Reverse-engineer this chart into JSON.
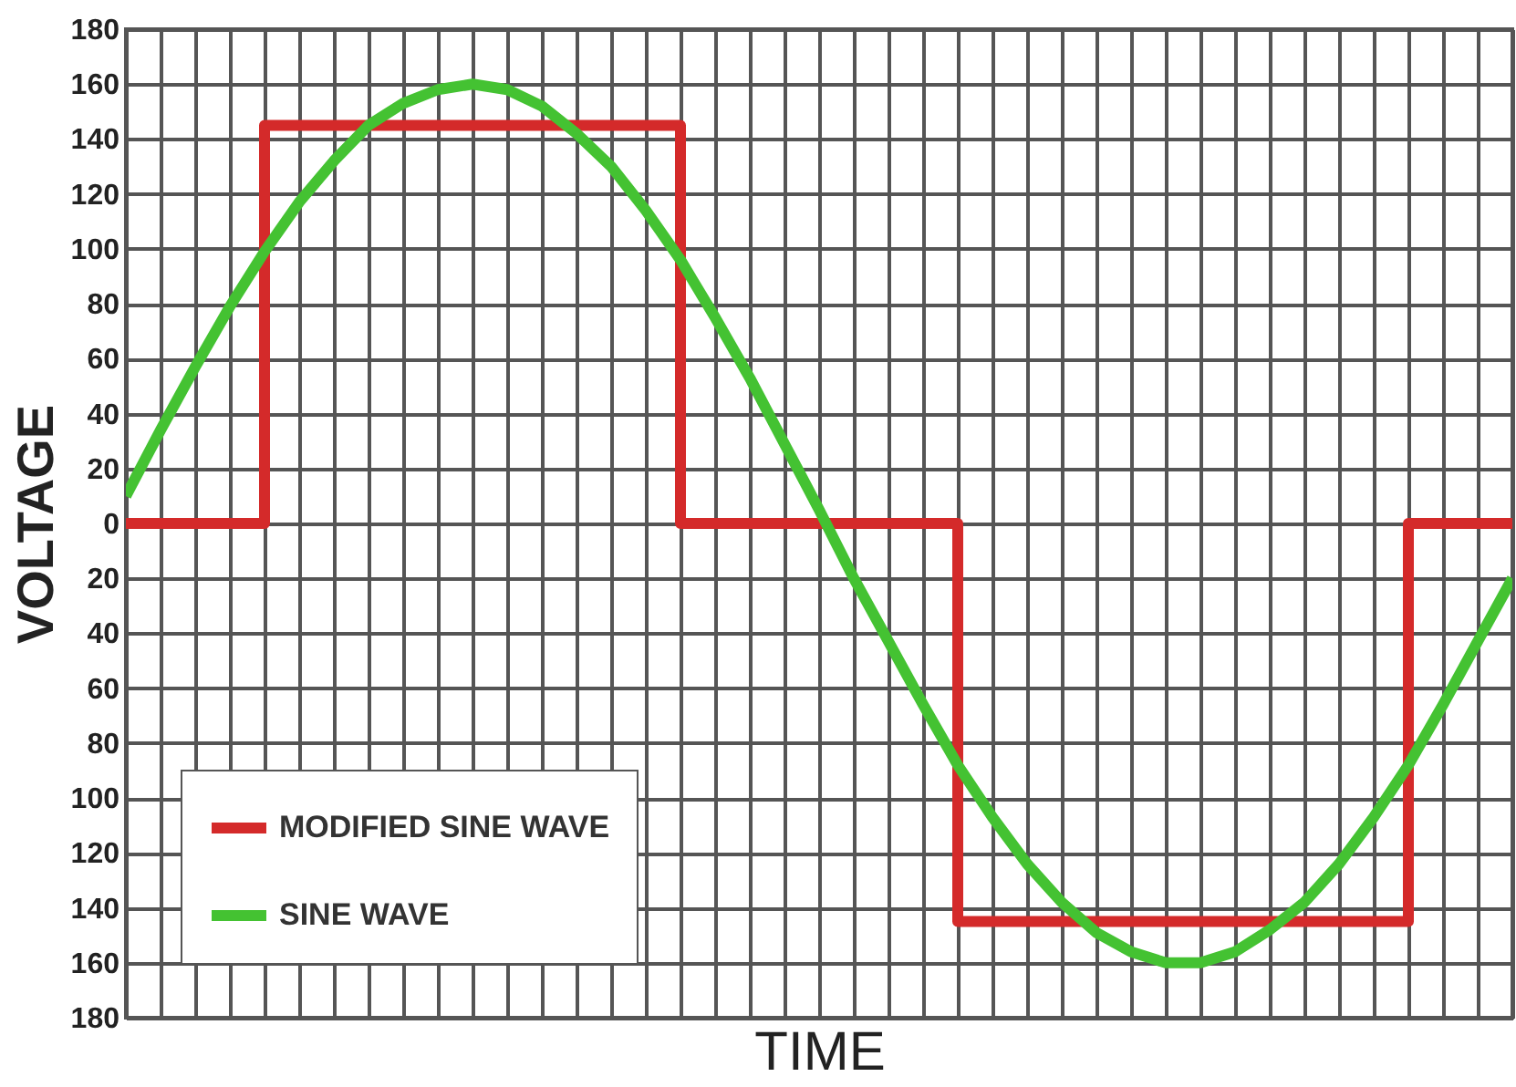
{
  "chart_data": {
    "type": "line",
    "xlabel": "TIME",
    "ylabel": "VOLTAGE",
    "categories": [
      null,
      null,
      null,
      null,
      null,
      null,
      null,
      null,
      null,
      null,
      null,
      null,
      null,
      null,
      null,
      null,
      null,
      null,
      null,
      null,
      null,
      null,
      null,
      null,
      null,
      null,
      null,
      null,
      null,
      null,
      null,
      null,
      null,
      null,
      null,
      null,
      null,
      null,
      null,
      null,
      null
    ],
    "ylim": [
      -180,
      180
    ],
    "yticks": [
      {
        "value": -180,
        "label": "180"
      },
      {
        "value": -160,
        "label": "160"
      },
      {
        "value": -140,
        "label": "140"
      },
      {
        "value": -120,
        "label": "120"
      },
      {
        "value": -100,
        "label": "100"
      },
      {
        "value": -80,
        "label": "80"
      },
      {
        "value": -60,
        "label": "60"
      },
      {
        "value": -40,
        "label": "40"
      },
      {
        "value": -20,
        "label": "20"
      },
      0,
      20,
      40,
      60,
      80,
      100,
      120,
      140,
      160,
      180
    ],
    "tick_labels": "y",
    "grid": true,
    "legend": "bottom left",
    "series": [
      {
        "name": "MODIFIED SINE WAVE",
        "type": "step",
        "color": "#d42a2a",
        "values": [
          0,
          0,
          0,
          0,
          145,
          145,
          145,
          145,
          145,
          145,
          145,
          145,
          145,
          145,
          145,
          145,
          0,
          0,
          0,
          0,
          0,
          0,
          0,
          0,
          -145,
          -145,
          -145,
          -145,
          -145,
          -145,
          -145,
          -145,
          -145,
          -145,
          -145,
          -145,
          -145,
          0,
          0,
          0,
          0
        ]
      },
      {
        "name": "SINE WAVE",
        "color": "#44c232",
        "values": [
          10,
          34,
          57,
          79,
          99,
          117,
          132,
          145,
          153,
          158,
          160,
          158,
          152,
          142,
          130,
          114,
          96,
          75,
          53,
          29,
          5,
          -20,
          -43,
          -66,
          -88,
          -107,
          -124,
          -138,
          -149,
          -156,
          -160,
          -160,
          -156,
          -148,
          -138,
          -124,
          -107,
          -88,
          -66,
          -43,
          -20
        ]
      }
    ]
  }
}
